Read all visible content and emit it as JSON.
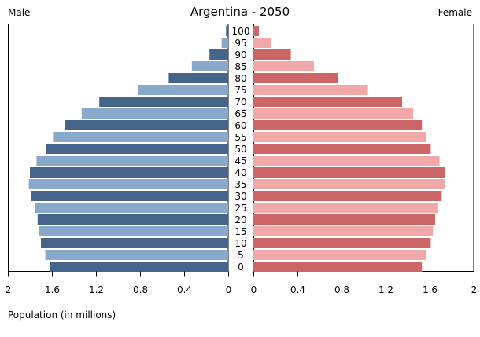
{
  "chart_data": {
    "type": "bar",
    "orientation": "horizontal-pyramid",
    "title": "Argentina - 2050",
    "left_label": "Male",
    "right_label": "Female",
    "xlabel": "Population (in millions)",
    "xlim": [
      0,
      2
    ],
    "x_ticks_left": [
      "2",
      "1.6",
      "1.2",
      "0.8",
      "0.4",
      "0"
    ],
    "x_ticks_right": [
      "0",
      "0.4",
      "0.8",
      "1.2",
      "1.6",
      "2"
    ],
    "categories": [
      "100",
      "95",
      "90",
      "85",
      "80",
      "75",
      "70",
      "65",
      "60",
      "55",
      "50",
      "45",
      "40",
      "35",
      "30",
      "25",
      "20",
      "15",
      "10",
      "5",
      "0"
    ],
    "series": [
      {
        "name": "Male",
        "values": [
          0.02,
          0.06,
          0.17,
          0.33,
          0.54,
          0.82,
          1.17,
          1.33,
          1.48,
          1.59,
          1.65,
          1.74,
          1.8,
          1.81,
          1.79,
          1.75,
          1.73,
          1.72,
          1.7,
          1.66,
          1.62
        ],
        "colors": [
          "#44648a",
          "#88a8cc"
        ]
      },
      {
        "name": "Female",
        "values": [
          0.05,
          0.16,
          0.34,
          0.55,
          0.77,
          1.04,
          1.35,
          1.45,
          1.53,
          1.57,
          1.61,
          1.69,
          1.74,
          1.74,
          1.71,
          1.67,
          1.65,
          1.63,
          1.61,
          1.57,
          1.53
        ],
        "colors": [
          "#cc6666",
          "#f0a8a8"
        ]
      }
    ],
    "grid": false
  }
}
